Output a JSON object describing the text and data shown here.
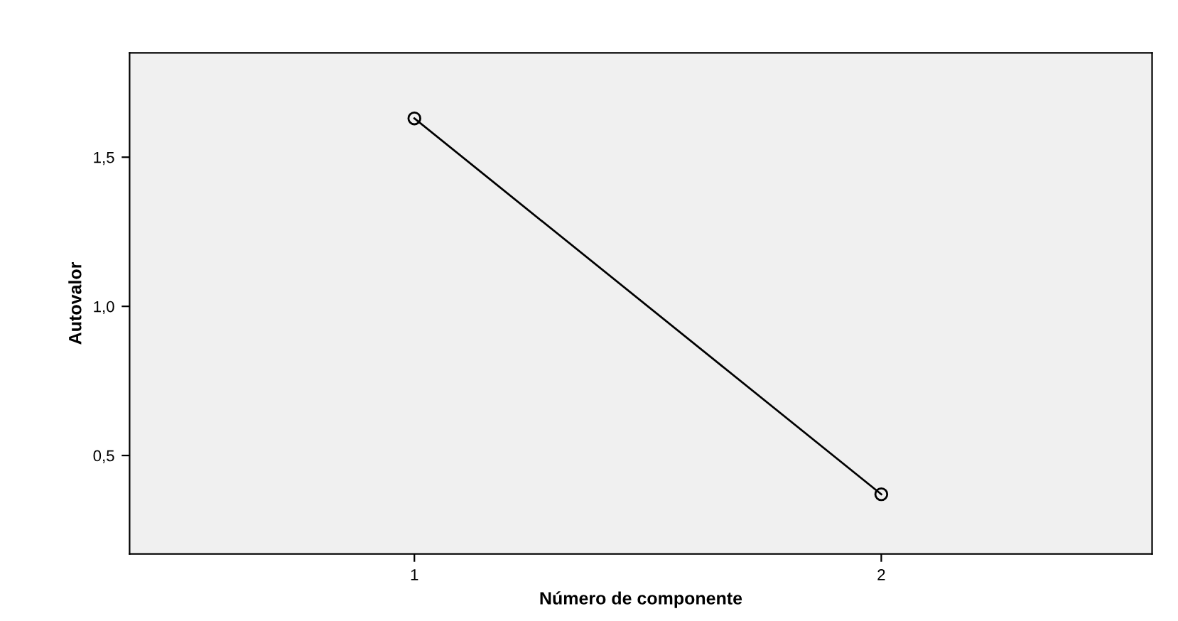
{
  "chart_data": {
    "type": "line",
    "xlabel": "Número de componente",
    "ylabel": "Autovalor",
    "x": [
      1,
      2
    ],
    "series": [
      {
        "color": "#000000",
        "values": [
          1.63,
          0.37
        ]
      }
    ],
    "xlim": [
      0.39,
      2.58
    ],
    "xticks": [
      1,
      2
    ],
    "ylim": [
      0.17,
      1.85
    ],
    "yticks": [
      {
        "value": 0.5,
        "label": "0,5"
      },
      {
        "value": 1.0,
        "label": "1,0"
      },
      {
        "value": 1.5,
        "label": "1,5"
      }
    ],
    "marker": "circle",
    "line_style": "solid",
    "grid": false,
    "legend": false
  }
}
